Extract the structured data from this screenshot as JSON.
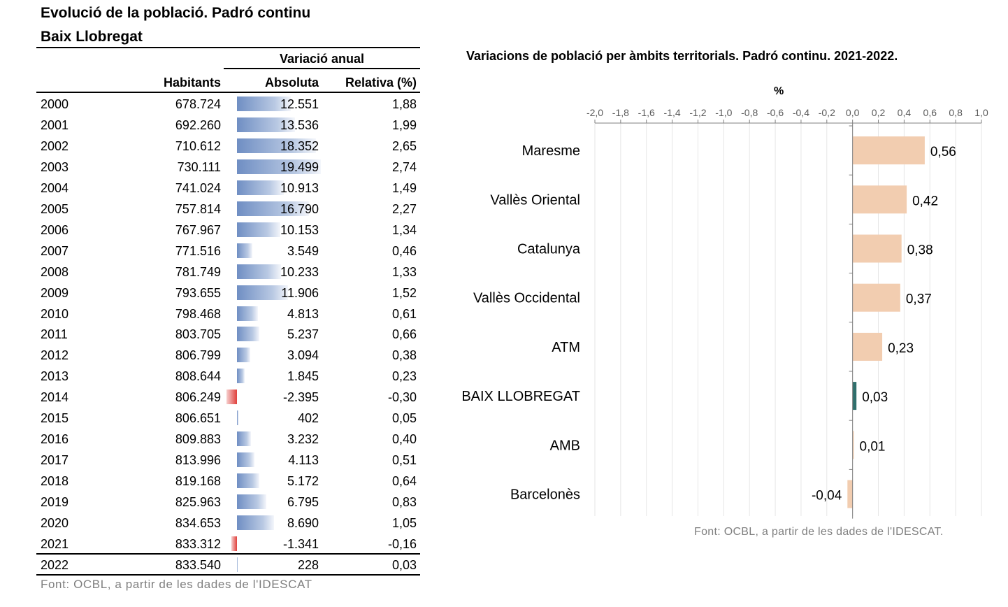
{
  "table": {
    "title_line1": "Evolució de la població. Padró continu",
    "title_line2": "Baix Llobregat",
    "group_header": "Variació anual",
    "col_habitants": "Habitants",
    "col_absoluta": "Absoluta",
    "col_relativa": "Relativa (%)",
    "bar_max": 19499,
    "rows": [
      {
        "year": "2000",
        "habitants": "678.724",
        "absoluta": "12.551",
        "abs_value": 12551,
        "relativa": "1,88"
      },
      {
        "year": "2001",
        "habitants": "692.260",
        "absoluta": "13.536",
        "abs_value": 13536,
        "relativa": "1,99"
      },
      {
        "year": "2002",
        "habitants": "710.612",
        "absoluta": "18.352",
        "abs_value": 18352,
        "relativa": "2,65"
      },
      {
        "year": "2003",
        "habitants": "730.111",
        "absoluta": "19.499",
        "abs_value": 19499,
        "relativa": "2,74"
      },
      {
        "year": "2004",
        "habitants": "741.024",
        "absoluta": "10.913",
        "abs_value": 10913,
        "relativa": "1,49"
      },
      {
        "year": "2005",
        "habitants": "757.814",
        "absoluta": "16.790",
        "abs_value": 16790,
        "relativa": "2,27"
      },
      {
        "year": "2006",
        "habitants": "767.967",
        "absoluta": "10.153",
        "abs_value": 10153,
        "relativa": "1,34"
      },
      {
        "year": "2007",
        "habitants": "771.516",
        "absoluta": "3.549",
        "abs_value": 3549,
        "relativa": "0,46"
      },
      {
        "year": "2008",
        "habitants": "781.749",
        "absoluta": "10.233",
        "abs_value": 10233,
        "relativa": "1,33"
      },
      {
        "year": "2009",
        "habitants": "793.655",
        "absoluta": "11.906",
        "abs_value": 11906,
        "relativa": "1,52"
      },
      {
        "year": "2010",
        "habitants": "798.468",
        "absoluta": "4.813",
        "abs_value": 4813,
        "relativa": "0,61"
      },
      {
        "year": "2011",
        "habitants": "803.705",
        "absoluta": "5.237",
        "abs_value": 5237,
        "relativa": "0,66"
      },
      {
        "year": "2012",
        "habitants": "806.799",
        "absoluta": "3.094",
        "abs_value": 3094,
        "relativa": "0,38"
      },
      {
        "year": "2013",
        "habitants": "808.644",
        "absoluta": "1.845",
        "abs_value": 1845,
        "relativa": "0,23"
      },
      {
        "year": "2014",
        "habitants": "806.249",
        "absoluta": "-2.395",
        "abs_value": -2395,
        "relativa": "-0,30"
      },
      {
        "year": "2015",
        "habitants": "806.651",
        "absoluta": "402",
        "abs_value": 402,
        "relativa": "0,05"
      },
      {
        "year": "2016",
        "habitants": "809.883",
        "absoluta": "3.232",
        "abs_value": 3232,
        "relativa": "0,40"
      },
      {
        "year": "2017",
        "habitants": "813.996",
        "absoluta": "4.113",
        "abs_value": 4113,
        "relativa": "0,51"
      },
      {
        "year": "2018",
        "habitants": "819.168",
        "absoluta": "5.172",
        "abs_value": 5172,
        "relativa": "0,64"
      },
      {
        "year": "2019",
        "habitants": "825.963",
        "absoluta": "6.795",
        "abs_value": 6795,
        "relativa": "0,83"
      },
      {
        "year": "2020",
        "habitants": "834.653",
        "absoluta": "8.690",
        "abs_value": 8690,
        "relativa": "1,05"
      },
      {
        "year": "2021",
        "habitants": "833.312",
        "absoluta": "-1.341",
        "abs_value": -1341,
        "relativa": "-0,16"
      },
      {
        "year": "2022",
        "habitants": "833.540",
        "absoluta": "228",
        "abs_value": 228,
        "relativa": "0,03"
      }
    ],
    "source": "Font: OCBL, a partir de les dades de l'IDESCAT",
    "colors": {
      "positive": "#6f8ec3",
      "negative": "#e0403c"
    }
  },
  "chart_data": {
    "type": "bar",
    "orientation": "horizontal",
    "title": "Variacions de població per àmbits territorials. Padró continu. 2021-2022.",
    "axis_unit_label": "%",
    "xlim": [
      -2.0,
      1.0
    ],
    "ticks": [
      -2.0,
      -1.8,
      -1.6,
      -1.4,
      -1.2,
      -1.0,
      -0.8,
      -0.6,
      -0.4,
      -0.2,
      0.0,
      0.2,
      0.4,
      0.6,
      0.8,
      1.0
    ],
    "tick_labels": [
      "-2,0",
      "-1,8",
      "-1,6",
      "-1,4",
      "-1,2",
      "-1,0",
      "-0,8",
      "-0,6",
      "-0,4",
      "-0,2",
      "0,0",
      "0,2",
      "0,4",
      "0,6",
      "0,8",
      "1,0"
    ],
    "axis_position": "top",
    "grid": true,
    "categories": [
      "Maresme",
      "Vallès Oriental",
      "Catalunya",
      "Vallès Occidental",
      "ATM",
      "BAIX LLOBREGAT",
      "AMB",
      "Barcelonès"
    ],
    "values": [
      0.56,
      0.42,
      0.38,
      0.37,
      0.23,
      0.03,
      0.01,
      -0.04
    ],
    "value_labels": [
      "0,56",
      "0,42",
      "0,38",
      "0,37",
      "0,23",
      "0,03",
      "0,01",
      "-0,04"
    ],
    "highlight": "BAIX LLOBREGAT",
    "colors": {
      "default": "#f2cdb0",
      "highlight": "#2f6f6c"
    },
    "source": "Font: OCBL, a partir de les dades de l'IDESCAT."
  }
}
